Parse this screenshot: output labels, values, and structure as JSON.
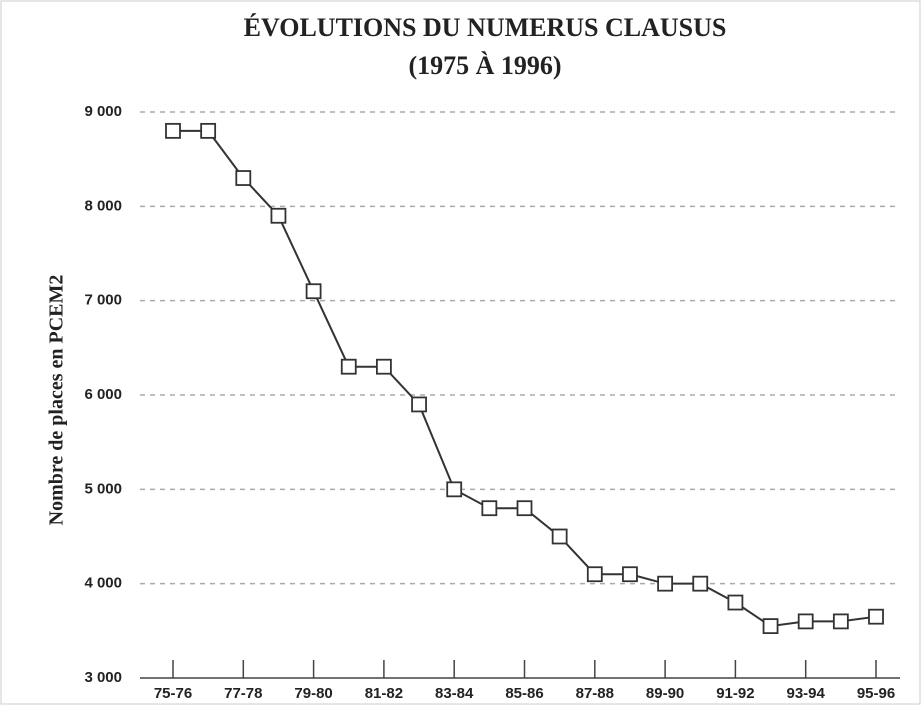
{
  "chart_data": {
    "type": "line",
    "title": "ÉVOLUTIONS DU NUMERUS CLAUSUS",
    "subtitle": "(1975 À 1996)",
    "y_label": "Nombre de places en PCEM2",
    "categories": [
      "75-76",
      null,
      "77-78",
      null,
      "79-80",
      null,
      "81-82",
      null,
      "83-84",
      null,
      "85-86",
      null,
      "87-88",
      null,
      "89-90",
      null,
      "91-92",
      null,
      "93-94",
      null,
      "95-96"
    ],
    "series": [
      {
        "name": "Numerus clausus",
        "color": "#333333",
        "values": [
          8800,
          8800,
          8300,
          7900,
          7100,
          6300,
          6300,
          5900,
          5000,
          4800,
          4800,
          4500,
          4100,
          4100,
          4000,
          4000,
          3800,
          3550,
          3600,
          3600,
          3650
        ]
      }
    ],
    "ylim": [
      3000,
      9000
    ],
    "yticks": [
      {
        "value": 3000,
        "label": "3 000"
      },
      {
        "value": 4000,
        "label": "4 000"
      },
      {
        "value": 5000,
        "label": "5 000"
      },
      {
        "value": 6000,
        "label": "6 000"
      },
      {
        "value": 7000,
        "label": "7 000"
      },
      {
        "value": 8000,
        "label": "8 000"
      },
      {
        "value": 9000,
        "label": "9 000"
      }
    ],
    "grid": true
  }
}
